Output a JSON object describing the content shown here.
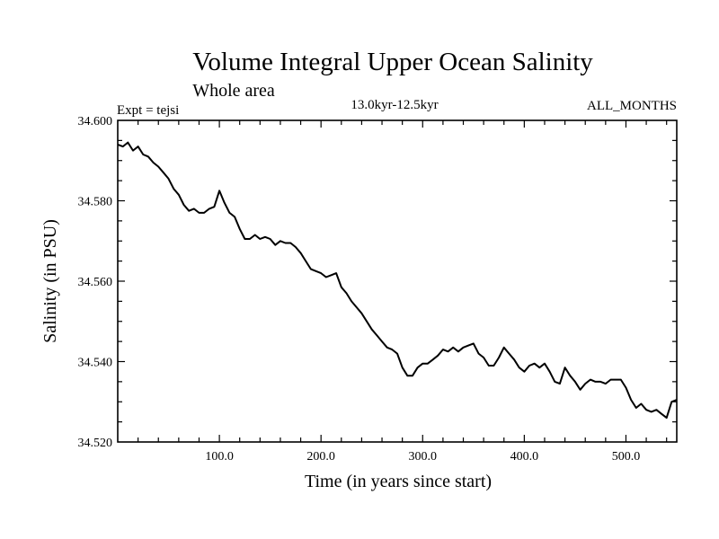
{
  "chart_data": {
    "type": "line",
    "title": "Volume Integral Upper Ocean Salinity",
    "subtitle": "Whole area",
    "header_left": "Expt = tejsi",
    "header_center": "13.0kyr-12.5kyr",
    "header_right": "ALL_MONTHS",
    "xlabel": "Time (in years since start)",
    "ylabel": "Salinity (in PSU)",
    "xlim": [
      0,
      550
    ],
    "ylim": [
      34.52,
      34.6
    ],
    "x_ticks": [
      100,
      200,
      300,
      400,
      500
    ],
    "x_tick_labels": [
      "100.0",
      "200.0",
      "300.0",
      "400.0",
      "500.0"
    ],
    "y_ticks": [
      34.52,
      34.54,
      34.56,
      34.58,
      34.6
    ],
    "y_tick_labels": [
      "34.520",
      "34.540",
      "34.560",
      "34.580",
      "34.600"
    ],
    "grid": false,
    "series": [
      {
        "name": "salinity",
        "color": "#000000",
        "x": [
          0,
          5,
          10,
          15,
          20,
          25,
          30,
          35,
          40,
          45,
          50,
          55,
          60,
          65,
          70,
          75,
          80,
          85,
          90,
          95,
          100,
          105,
          110,
          115,
          120,
          125,
          130,
          135,
          140,
          145,
          150,
          155,
          160,
          165,
          170,
          175,
          180,
          185,
          190,
          195,
          200,
          205,
          210,
          215,
          220,
          225,
          230,
          235,
          240,
          245,
          250,
          255,
          260,
          265,
          270,
          275,
          280,
          285,
          290,
          295,
          300,
          305,
          310,
          315,
          320,
          325,
          330,
          335,
          340,
          345,
          350,
          355,
          360,
          365,
          370,
          375,
          380,
          385,
          390,
          395,
          400,
          405,
          410,
          415,
          420,
          425,
          430,
          435,
          440,
          445,
          450,
          455,
          460,
          465,
          470,
          475,
          480,
          485,
          490,
          495,
          500,
          505,
          510,
          515,
          520,
          525,
          530,
          535,
          540,
          545,
          550
        ],
        "values": [
          34.594,
          34.5935,
          34.5945,
          34.5925,
          34.5935,
          34.5915,
          34.591,
          34.5895,
          34.5885,
          34.587,
          34.5855,
          34.583,
          34.5815,
          34.579,
          34.5775,
          34.578,
          34.577,
          34.577,
          34.578,
          34.5785,
          34.5825,
          34.5795,
          34.577,
          34.576,
          34.573,
          34.5705,
          34.5705,
          34.5715,
          34.5705,
          34.571,
          34.5705,
          34.569,
          34.57,
          34.5695,
          34.5695,
          34.5685,
          34.567,
          34.565,
          34.563,
          34.5625,
          34.562,
          34.561,
          34.5615,
          34.562,
          34.5585,
          34.557,
          34.555,
          34.5535,
          34.552,
          34.55,
          34.548,
          34.5465,
          34.545,
          34.5435,
          34.543,
          34.542,
          34.5385,
          34.5365,
          34.5365,
          34.5385,
          34.5395,
          34.5395,
          34.5405,
          34.5415,
          34.543,
          34.5425,
          34.5435,
          34.5425,
          34.5435,
          34.544,
          34.5445,
          34.542,
          34.541,
          34.539,
          34.539,
          34.541,
          34.5435,
          34.542,
          34.5405,
          34.5385,
          34.5375,
          34.539,
          34.5395,
          34.5385,
          34.5395,
          34.5375,
          34.535,
          34.5345,
          34.5385,
          34.5365,
          34.535,
          34.533,
          34.5345,
          34.5355,
          34.535,
          34.535,
          34.5345,
          34.5355,
          34.5355,
          34.5355,
          34.5335,
          34.5305,
          34.5285,
          34.5295,
          34.528,
          34.5275,
          34.528,
          34.527,
          34.526,
          34.53,
          34.5305
        ]
      }
    ]
  }
}
